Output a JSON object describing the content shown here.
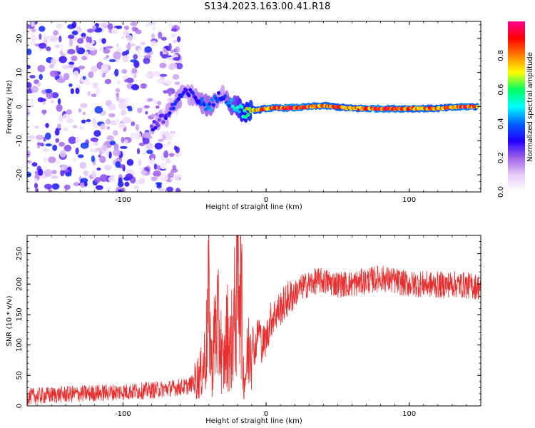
{
  "figure_title": "S134.2023.163.00.41.R18",
  "colors": {
    "snr_line": "#e83030",
    "spectrogram_scale": [
      "#ffffff",
      "#e6ccf7",
      "#a060e8",
      "#2000ff",
      "#0060ff",
      "#00ffff",
      "#00ff60",
      "#ffff00",
      "#ff8000",
      "#ff0000",
      "#ff0090"
    ]
  },
  "chart_data": [
    {
      "type": "heatmap",
      "title": "",
      "xlabel": "Height of straight line (km)",
      "ylabel": "Frequency (Hz)",
      "xlim": [
        -167,
        150
      ],
      "ylim": [
        -25,
        25
      ],
      "x_ticks": [
        {
          "value": -100,
          "label": "-100"
        },
        {
          "value": 0,
          "label": "0"
        },
        {
          "value": 100,
          "label": "100"
        }
      ],
      "y_ticks": [
        {
          "value": -20,
          "label": "-20"
        },
        {
          "value": -10,
          "label": "-10"
        },
        {
          "value": 0,
          "label": "0"
        },
        {
          "value": 10,
          "label": "10"
        },
        {
          "value": 20,
          "label": "20"
        }
      ],
      "colorbar": {
        "label": "Normalized spectral amplitude",
        "range": [
          0,
          1
        ],
        "ticks": [
          {
            "value": 0.0,
            "label": "0.0"
          },
          {
            "value": 0.2,
            "label": "0.2"
          },
          {
            "value": 0.4,
            "label": "0.4"
          },
          {
            "value": 0.6,
            "label": "0.6"
          },
          {
            "value": 0.8,
            "label": "0.8"
          }
        ]
      },
      "ridge": {
        "x": [
          -80,
          -70,
          -65,
          -60,
          -55,
          -50,
          -45,
          -40,
          -35,
          -30,
          -25,
          -20,
          -15,
          -10,
          -5,
          0,
          20,
          40,
          60,
          80,
          100,
          120,
          140,
          148
        ],
        "frequency": [
          -6,
          -3,
          0,
          3,
          4,
          3,
          1,
          0,
          2,
          4,
          1,
          0,
          -2,
          -1,
          -1,
          -0.5,
          -0.3,
          0.3,
          -0.5,
          -0.6,
          -0.6,
          -0.5,
          0,
          0
        ],
        "amplitude": [
          0.3,
          0.3,
          0.35,
          0.35,
          0.3,
          0.35,
          0.4,
          0.45,
          0.4,
          0.3,
          0.5,
          0.55,
          0.7,
          0.8,
          0.85,
          0.9,
          0.95,
          0.9,
          0.85,
          0.95,
          0.9,
          0.85,
          0.95,
          0.9
        ]
      }
    },
    {
      "type": "line",
      "title": "",
      "xlabel": "Height of straight line (km)",
      "ylabel": "SNR (10 * v/v)",
      "xlim": [
        -167,
        150
      ],
      "ylim": [
        0,
        280
      ],
      "x_ticks": [
        {
          "value": -100,
          "label": "-100"
        },
        {
          "value": 0,
          "label": "0"
        },
        {
          "value": 100,
          "label": "100"
        }
      ],
      "y_ticks": [
        {
          "value": 0,
          "label": "0"
        },
        {
          "value": 50,
          "label": "50"
        },
        {
          "value": 100,
          "label": "100"
        },
        {
          "value": 150,
          "label": "150"
        },
        {
          "value": 200,
          "label": "200"
        },
        {
          "value": 250,
          "label": "250"
        }
      ],
      "series": [
        {
          "x": [
            -167,
            -150,
            -130,
            -110,
            -90,
            -70,
            -55,
            -50,
            -45,
            -42,
            -40,
            -38,
            -35,
            -32,
            -30,
            -27,
            -25,
            -22,
            -20,
            -18,
            -17,
            -16,
            -15,
            -13,
            -10,
            -8,
            -5,
            -3,
            0,
            3,
            6,
            10,
            15,
            20,
            25,
            30,
            35,
            40,
            50,
            60,
            70,
            80,
            90,
            100,
            110,
            120,
            130,
            140,
            150
          ],
          "y": [
            15,
            18,
            20,
            22,
            24,
            28,
            32,
            40,
            55,
            90,
            170,
            60,
            140,
            110,
            60,
            120,
            90,
            150,
            200,
            270,
            160,
            60,
            40,
            80,
            120,
            90,
            130,
            100,
            110,
            140,
            150,
            160,
            175,
            185,
            195,
            200,
            205,
            205,
            200,
            200,
            205,
            210,
            205,
            200,
            200,
            198,
            200,
            198,
            195
          ]
        }
      ]
    }
  ]
}
